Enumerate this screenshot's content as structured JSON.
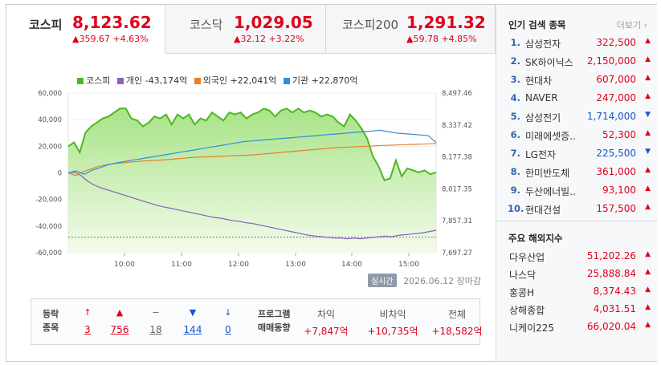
{
  "tabs": [
    {
      "name": "코스피",
      "price": "8,123.62",
      "change": "▲359.67 +4.63%"
    },
    {
      "name": "코스닥",
      "price": "1,029.05",
      "change": "▲32.12 +3.22%"
    },
    {
      "name": "코스피200",
      "price": "1,291.32",
      "change": "▲59.78 +4.85%"
    }
  ],
  "legend": {
    "kospi": "코스피",
    "individual": "개인 -43,174억",
    "foreign": "외국인 +22,041억",
    "institution": "기관 +22,870억"
  },
  "colors": {
    "kospi": "#4cb81e",
    "individual": "#8a5fc0",
    "foreign": "#e8802a",
    "institution": "#2f8ee0",
    "up": "#e0001b",
    "down": "#1a56c8"
  },
  "chart_data": {
    "type": "line",
    "x_ticks": [
      "10:00",
      "11:00",
      "12:00",
      "13:00",
      "14:00",
      "15:00"
    ],
    "y_left_ticks": [
      "60,000",
      "40,000",
      "20,000",
      "0",
      "-20,000",
      "-40,000",
      "-60,000"
    ],
    "y_right_ticks": [
      "8,497.46",
      "8,337.42",
      "8,177.38",
      "8,017.35",
      "7,857.31",
      "7,697.27"
    ],
    "series": [
      {
        "name": "코스피",
        "axis": "right",
        "values": [
          8230,
          8250,
          8200,
          8300,
          8330,
          8350,
          8370,
          8380,
          8400,
          8420,
          8420,
          8370,
          8360,
          8330,
          8350,
          8380,
          8370,
          8390,
          8340,
          8390,
          8370,
          8390,
          8340,
          8370,
          8360,
          8400,
          8380,
          8360,
          8400,
          8390,
          8400,
          8370,
          8390,
          8400,
          8420,
          8410,
          8380,
          8410,
          8420,
          8400,
          8420,
          8400,
          8410,
          8400,
          8380,
          8390,
          8380,
          8350,
          8330,
          8390,
          8360,
          8320,
          8270,
          8180,
          8130,
          8060,
          8070,
          8160,
          8080,
          8120,
          8110,
          8100,
          8110,
          8090,
          8100
        ]
      },
      {
        "name": "개인 -43,174억",
        "axis": "left",
        "values": [
          0,
          500,
          -2000,
          -6000,
          -9000,
          -11000,
          -12500,
          -14000,
          -15500,
          -17000,
          -18500,
          -20000,
          -21500,
          -23000,
          -24500,
          -25500,
          -26500,
          -27500,
          -28500,
          -29500,
          -30500,
          -31500,
          -32500,
          -33500,
          -34000,
          -35000,
          -36000,
          -36500,
          -37500,
          -38000,
          -39000,
          -40000,
          -41000,
          -42000,
          -43000,
          -44000,
          -45000,
          -46000,
          -47000,
          -47500,
          -48000,
          -48500,
          -49000,
          -49000,
          -49500,
          -49000,
          -49500,
          -49000,
          -48500,
          -48000,
          -47500,
          -48000,
          -47000,
          -46500,
          -46000,
          -45500,
          -45000,
          -44000,
          -43174
        ]
      },
      {
        "name": "외국인 +22,041억",
        "axis": "left",
        "values": [
          0,
          -2000,
          1000,
          3000,
          5000,
          6000,
          7000,
          7500,
          8000,
          8500,
          9000,
          9200,
          9500,
          10000,
          10500,
          11000,
          11500,
          11800,
          12000,
          12300,
          12500,
          12800,
          13000,
          13200,
          13500,
          14000,
          14500,
          15000,
          15500,
          16000,
          16500,
          17000,
          17500,
          18000,
          18500,
          19000,
          19200,
          19500,
          19800,
          20000,
          20300,
          20600,
          20800,
          21000,
          21200,
          21400,
          21600,
          21800,
          22041
        ]
      },
      {
        "name": "기관 +22,870억",
        "axis": "left",
        "values": [
          0,
          1500,
          -1000,
          2000,
          4000,
          6000,
          7500,
          8500,
          9500,
          10500,
          11500,
          12500,
          13500,
          14500,
          15500,
          16500,
          17500,
          18500,
          19500,
          20500,
          21500,
          22500,
          23500,
          24000,
          24500,
          25000,
          25500,
          26000,
          26500,
          27000,
          27500,
          28000,
          28500,
          29000,
          29500,
          30000,
          30500,
          31000,
          31500,
          32000,
          31000,
          30000,
          29500,
          29000,
          28500,
          28000,
          22870
        ]
      }
    ],
    "ylim_left": [
      -60000,
      60000
    ],
    "ylim_right": [
      7697.27,
      8497.46
    ],
    "baseline_right": 7775.0
  },
  "chart_footer": {
    "badge": "실시간",
    "date": "2026.06.12",
    "status": "장마감"
  },
  "breadth": {
    "label": "등락\n종목",
    "items": [
      {
        "icon": "↑",
        "count": "3",
        "color": "#e0001b"
      },
      {
        "icon": "▲",
        "count": "756",
        "color": "#e0001b"
      },
      {
        "icon": "−",
        "count": "18",
        "color": "#666"
      },
      {
        "icon": "▼",
        "count": "144",
        "color": "#1a56c8"
      },
      {
        "icon": "↓",
        "count": "0",
        "color": "#1a56c8"
      }
    ]
  },
  "program": {
    "label": "프로그램\n매매동향",
    "items": [
      {
        "title": "차익",
        "value": "+7,847억"
      },
      {
        "title": "비차익",
        "value": "+10,735억"
      },
      {
        "title": "전체",
        "value": "+18,582억"
      }
    ]
  },
  "sidebar": {
    "popular_title": "인기 검색 종목",
    "more": "더보기",
    "popular": [
      {
        "rank": "1.",
        "name": "삼성전자",
        "price": "322,500",
        "dir": "up"
      },
      {
        "rank": "2.",
        "name": "SK하이닉스",
        "price": "2,150,000",
        "dir": "up"
      },
      {
        "rank": "3.",
        "name": "현대차",
        "price": "607,000",
        "dir": "up"
      },
      {
        "rank": "4.",
        "name": "NAVER",
        "price": "247,000",
        "dir": "up"
      },
      {
        "rank": "5.",
        "name": "삼성전기",
        "price": "1,714,000",
        "dir": "down"
      },
      {
        "rank": "6.",
        "name": "미래에셋증..",
        "price": "52,300",
        "dir": "up"
      },
      {
        "rank": "7.",
        "name": "LG전자",
        "price": "225,500",
        "dir": "down"
      },
      {
        "rank": "8.",
        "name": "한미반도체",
        "price": "361,000",
        "dir": "up"
      },
      {
        "rank": "9.",
        "name": "두산에너빌..",
        "price": "93,100",
        "dir": "up"
      },
      {
        "rank": "10.",
        "name": "현대건설",
        "price": "157,500",
        "dir": "up"
      }
    ],
    "overseas_title": "주요 해외지수",
    "overseas": [
      {
        "name": "다우산업",
        "value": "51,202.26"
      },
      {
        "name": "나스닥",
        "value": "25,888.84"
      },
      {
        "name": "홍콩H",
        "value": "8,374.43"
      },
      {
        "name": "상해종합",
        "value": "4,031.51"
      },
      {
        "name": "니케이225",
        "value": "66,020.04"
      }
    ]
  }
}
